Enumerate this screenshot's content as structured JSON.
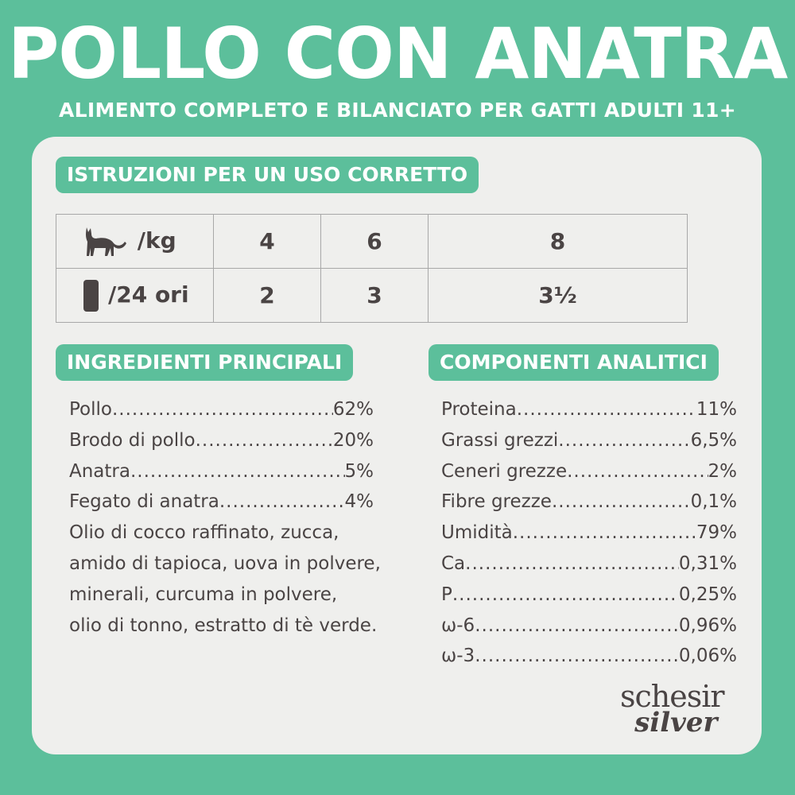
{
  "title": "POLLO CON ANATRA",
  "subtitle": "ALIMENTO COMPLETO E BILANCIATO PER GATTI ADULTI 11+",
  "instructions": {
    "heading": "ISTRUZIONI PER UN USO CORRETTO",
    "rows": [
      {
        "icon": "cat-icon",
        "label": "/kg",
        "values": [
          "4",
          "6",
          "8"
        ]
      },
      {
        "icon": "pouch-icon",
        "label": "/24 ori",
        "values": [
          "2",
          "3",
          "3½"
        ]
      }
    ]
  },
  "ingredients": {
    "heading": "INGREDIENTI PRINCIPALI",
    "items": [
      {
        "name": "Pollo",
        "value": "62%"
      },
      {
        "name": "Brodo di pollo",
        "value": " 20%"
      },
      {
        "name": "Anatra",
        "value": "5%"
      },
      {
        "name": "Fegato di anatra",
        "value": " 4%"
      }
    ],
    "text": [
      "Olio di cocco raffinato, zucca,",
      "amido di tapioca, uova in polvere,",
      "minerali, curcuma in polvere,",
      "olio di tonno, estratto di tè verde."
    ]
  },
  "analytics": {
    "heading": "COMPONENTI ANALITICI",
    "items": [
      {
        "name": "Proteina",
        "value": "11%"
      },
      {
        "name": "Grassi grezzi",
        "value": "6,5%"
      },
      {
        "name": "Ceneri grezze",
        "value": "2%"
      },
      {
        "name": "Fibre grezze",
        "value": "0,1%"
      },
      {
        "name": "Umidità",
        "value": "79%"
      },
      {
        "name": "Ca",
        "value": "0,31%"
      },
      {
        "name": "P",
        "value": "0,25%"
      },
      {
        "name": "ω-6",
        "value": "0,96%"
      },
      {
        "name": "ω-3",
        "value": "0,06%"
      }
    ]
  },
  "logo": {
    "line1": "schesir",
    "line2": "silver"
  },
  "colors": {
    "brand_green": "#5cbf9b",
    "panel": "#efefed",
    "text": "#4a4444"
  }
}
